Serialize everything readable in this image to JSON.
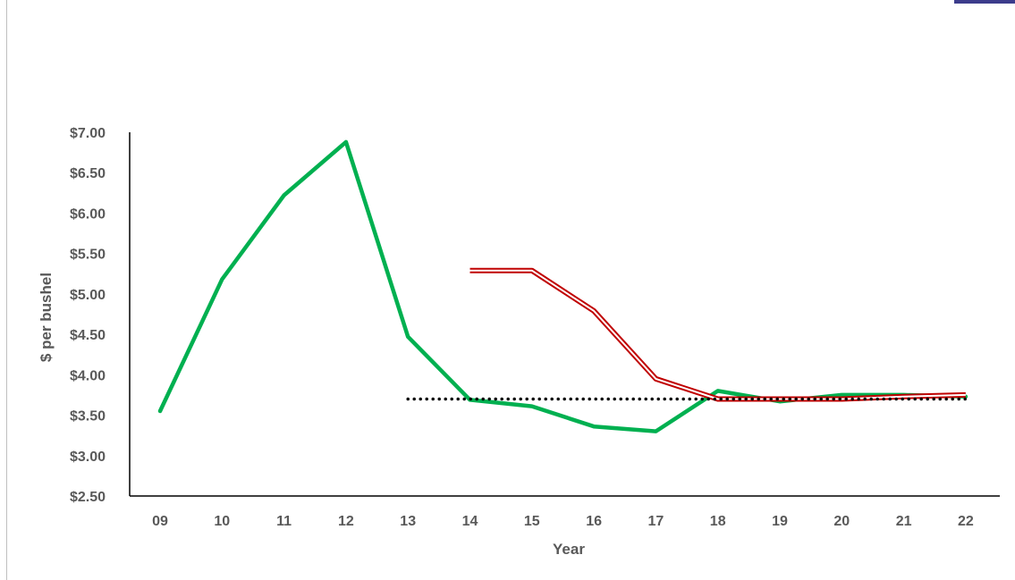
{
  "chart_data": {
    "type": "line",
    "title": "",
    "xlabel": "Year",
    "ylabel": "$ per bushel",
    "categories": [
      "09",
      "10",
      "11",
      "12",
      "13",
      "14",
      "15",
      "16",
      "17",
      "18",
      "19",
      "20",
      "21",
      "22"
    ],
    "y_tick_labels": [
      "$2.50",
      "$3.00",
      "$3.50",
      "$4.00",
      "$4.50",
      "$5.00",
      "$5.50",
      "$6.00",
      "$6.50",
      "$7.00"
    ],
    "y_ticks": [
      2.5,
      3.0,
      3.5,
      4.0,
      4.5,
      5.0,
      5.5,
      6.0,
      6.5,
      7.0
    ],
    "ylim": [
      2.5,
      7.0
    ],
    "grid": false,
    "legend": "none",
    "series": [
      {
        "color": "#00b050",
        "style": "solid",
        "values": [
          3.55,
          5.18,
          6.22,
          6.88,
          4.47,
          3.69,
          3.61,
          3.36,
          3.3,
          3.8,
          3.67,
          3.75,
          3.75,
          3.73
        ]
      },
      {
        "color": "#c00000",
        "style": "double",
        "values": [
          null,
          null,
          null,
          null,
          null,
          5.29,
          5.29,
          4.79,
          3.95,
          3.7,
          3.7,
          3.7,
          3.73,
          3.75
        ]
      },
      {
        "color": "#000000",
        "style": "dotted",
        "values": [
          null,
          null,
          null,
          null,
          3.7,
          3.7,
          3.7,
          3.7,
          3.7,
          3.7,
          3.7,
          3.7,
          3.7,
          3.7
        ]
      }
    ]
  }
}
